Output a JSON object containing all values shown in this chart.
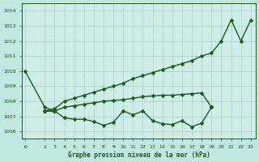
{
  "xlabel": "Graphe pression niveau de la mer (hPa)",
  "background_color": "#c0e8e0",
  "plot_bg_color": "#d0eee8",
  "grid_color": "#a8cccc",
  "line_color": "#1a5c1a",
  "ylim": [
    1005.5,
    1014.5
  ],
  "xlim": [
    -0.3,
    23.5
  ],
  "yticks": [
    1006,
    1007,
    1008,
    1009,
    1010,
    1011,
    1012,
    1013,
    1014
  ],
  "xticks": [
    0,
    2,
    3,
    4,
    5,
    6,
    7,
    8,
    9,
    10,
    11,
    12,
    13,
    14,
    15,
    16,
    17,
    18,
    19,
    20,
    21,
    22,
    23
  ],
  "marker_size": 2.5,
  "line_width": 1.0,
  "series": [
    {
      "x": [
        0,
        2,
        3
      ],
      "y": [
        1010.0,
        1007.6,
        1007.35
      ]
    },
    {
      "x": [
        2,
        3,
        4,
        5,
        6,
        7,
        8,
        9,
        10,
        11,
        12,
        13,
        14,
        15,
        16,
        17,
        18,
        19,
        20,
        21,
        22,
        23
      ],
      "y": [
        1007.35,
        1007.5,
        1008.0,
        1008.2,
        1008.4,
        1008.6,
        1008.8,
        1009.0,
        1009.2,
        1009.5,
        1009.7,
        1009.9,
        1010.1,
        1010.3,
        1010.5,
        1010.7,
        1011.0,
        1011.2,
        1012.0,
        1013.4,
        1012.0,
        1013.4
      ]
    },
    {
      "x": [
        2,
        3,
        4,
        5,
        6,
        7,
        8,
        9,
        10,
        11,
        12,
        13,
        14,
        15,
        16,
        17,
        18,
        19
      ],
      "y": [
        1007.35,
        1007.35,
        1007.6,
        1007.7,
        1007.8,
        1007.9,
        1008.0,
        1008.05,
        1008.1,
        1008.2,
        1008.3,
        1008.35,
        1008.4,
        1008.4,
        1008.45,
        1008.5,
        1008.55,
        1007.6
      ]
    },
    {
      "x": [
        2,
        3,
        4,
        5,
        6,
        7,
        8,
        9,
        10,
        11,
        12,
        13,
        14,
        15,
        16,
        17,
        18,
        19
      ],
      "y": [
        1007.35,
        1007.35,
        1006.9,
        1006.8,
        1006.8,
        1006.65,
        1006.4,
        1006.6,
        1007.35,
        1007.1,
        1007.35,
        1006.7,
        1006.5,
        1006.45,
        1006.7,
        1006.3,
        1006.55,
        1007.6
      ]
    }
  ]
}
